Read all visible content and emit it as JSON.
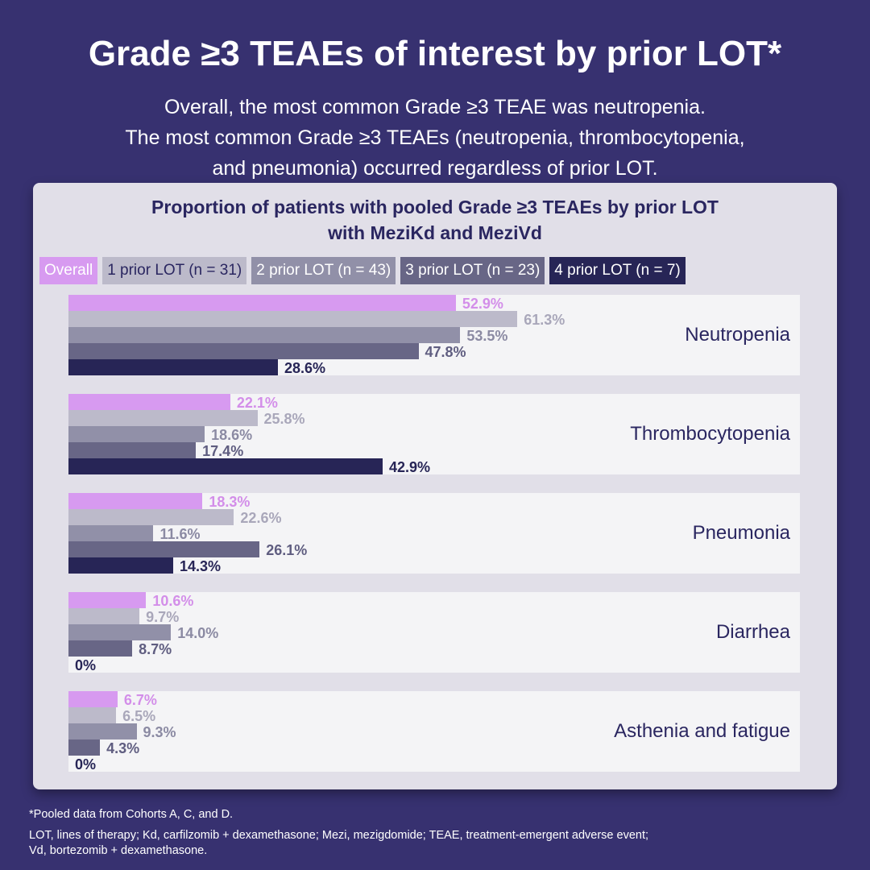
{
  "title": "Grade ≥3 TEAEs of interest by prior LOT*",
  "subtitle": [
    "Overall, the most common Grade ≥3 TEAE was neutropenia.",
    "The most common Grade ≥3 TEAEs (neutropenia, thrombocytopenia,",
    "and pneumonia) occurred regardless of prior LOT."
  ],
  "chart_data": {
    "type": "bar",
    "orientation": "horizontal",
    "title": "Proportion of patients with pooled Grade ≥3 TEAEs by prior LOT",
    "subtitle": "with MeziKd and MeziVd",
    "categories": [
      "Neutropenia",
      "Thrombocytopenia",
      "Pneumonia",
      "Diarrhea",
      "Asthenia and fatigue"
    ],
    "series": [
      {
        "name": "Overall",
        "color": "#d79af0",
        "label_color": "#d38ee9",
        "values": [
          52.9,
          22.1,
          18.3,
          10.6,
          6.7
        ],
        "labels": [
          "52.9%",
          "22.1%",
          "18.3%",
          "10.6%",
          "6.7%"
        ]
      },
      {
        "name": "1 prior LOT (n = 31)",
        "color": "#bcbaca",
        "label_color": "#a9a7ba",
        "values": [
          61.3,
          25.8,
          22.6,
          9.7,
          6.5
        ],
        "labels": [
          "61.3%",
          "25.8%",
          "22.6%",
          "9.7%",
          "6.5%"
        ]
      },
      {
        "name": "2 prior LOT (n = 43)",
        "color": "#9190a8",
        "label_color": "#8b8aa3",
        "values": [
          53.5,
          18.6,
          11.6,
          14.0,
          9.3
        ],
        "labels": [
          "53.5%",
          "18.6%",
          "11.6%",
          "14.0%",
          "9.3%"
        ]
      },
      {
        "name": "3 prior LOT (n = 23)",
        "color": "#686686",
        "label_color": "#5f5d80",
        "values": [
          47.8,
          17.4,
          26.1,
          8.7,
          4.3
        ],
        "labels": [
          "47.8%",
          "17.4%",
          "26.1%",
          "8.7%",
          "4.3%"
        ]
      },
      {
        "name": "4 prior LOT (n = 7)",
        "color": "#272556",
        "label_color": "#272556",
        "values": [
          28.6,
          42.9,
          14.3,
          0,
          0
        ],
        "labels": [
          "28.6%",
          "42.9%",
          "14.3%",
          "0%",
          "0%"
        ]
      }
    ],
    "legend_text_colors": [
      "#ffffff",
      "#2a2660",
      "#ffffff",
      "#ffffff",
      "#ffffff"
    ],
    "xlim": [
      0,
      100
    ],
    "legend": "top"
  },
  "footnotes": [
    "*Pooled data from Cohorts A, C, and D.",
    "LOT, lines of therapy; Kd, carfilzomib + dexamethasone; Mezi, mezigdomide; TEAE, treatment-emergent adverse event;",
    "Vd, bortezomib + dexamethasone."
  ]
}
